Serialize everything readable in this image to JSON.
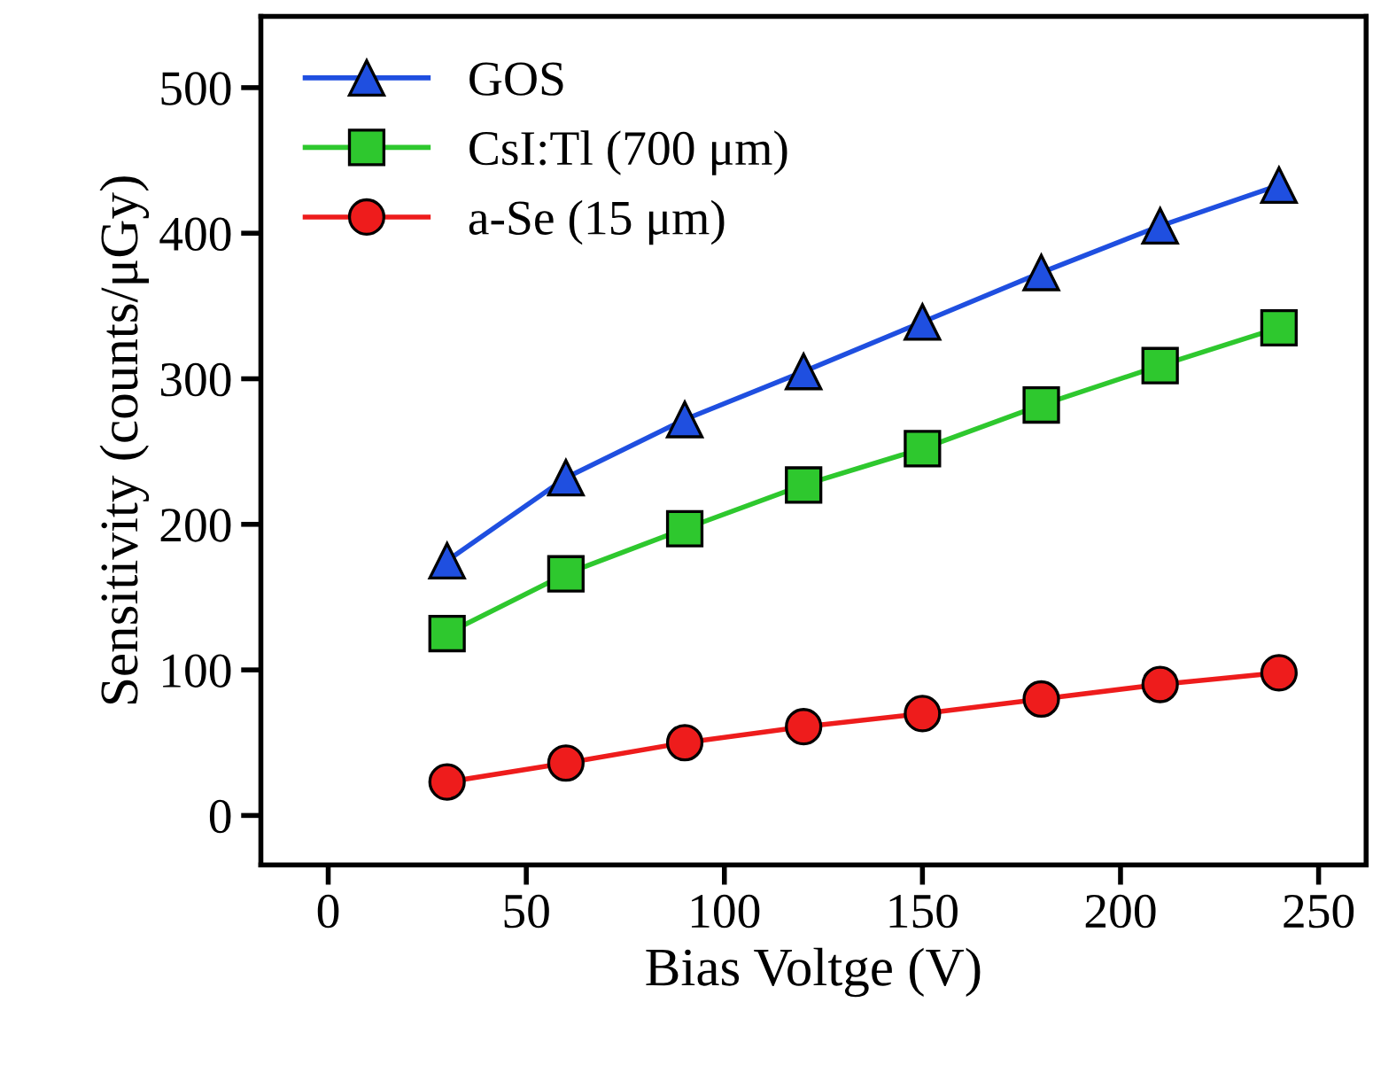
{
  "chart_data": {
    "type": "line",
    "xlabel": "Bias Voltge (V)",
    "ylabel": "Sensitivity (counts/μGy)",
    "x": [
      30,
      60,
      90,
      120,
      150,
      180,
      210,
      240
    ],
    "series": [
      {
        "name": "GOS",
        "color": "#1f4fe0",
        "marker": "triangle",
        "values": [
          175,
          232,
          272,
          305,
          339,
          373,
          405,
          433
        ]
      },
      {
        "name": "CsI:Tl (700 μm)",
        "color": "#2ec82e",
        "marker": "square",
        "values": [
          125,
          166,
          197,
          227,
          252,
          282,
          309,
          335
        ]
      },
      {
        "name": "a-Se (15 μm)",
        "color": "#ee1c1c",
        "marker": "circle",
        "values": [
          23,
          36,
          50,
          61,
          70,
          80,
          90,
          98
        ]
      }
    ],
    "xlim": [
      -17,
      262
    ],
    "ylim": [
      -34,
      549
    ],
    "xticks": [
      0,
      50,
      100,
      150,
      200,
      250
    ],
    "yticks": [
      0,
      100,
      200,
      300,
      400,
      500
    ],
    "grid": false,
    "legend": "top left",
    "line_style": "solid"
  }
}
